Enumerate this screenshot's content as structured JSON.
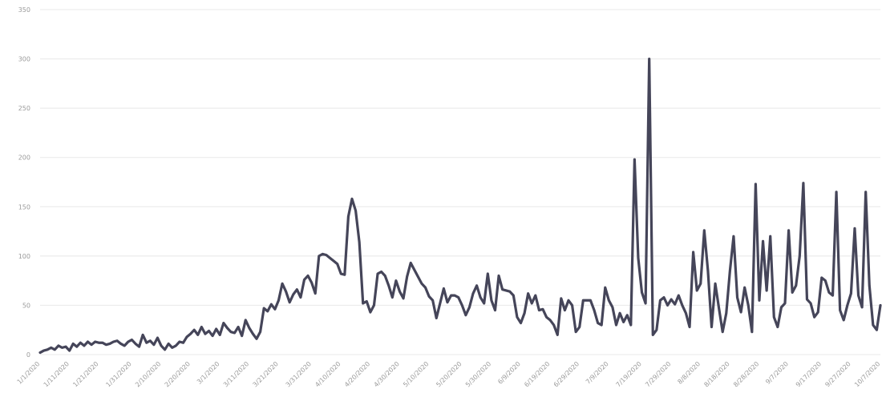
{
  "chart_data": {
    "type": "line",
    "title": "",
    "xlabel": "",
    "ylabel": "",
    "ylim": [
      0,
      350
    ],
    "y_ticks": [
      "0",
      "50",
      "100",
      "150",
      "200",
      "250",
      "300",
      "350"
    ],
    "x_ticks": [
      "1/1/2020",
      "1/11/2020",
      "1/21/2020",
      "1/31/2020",
      "2/10/2020",
      "2/20/2020",
      "3/1/2020",
      "3/11/2020",
      "3/21/2020",
      "3/31/2020",
      "4/10/2020",
      "4/20/2020",
      "4/30/2020",
      "5/10/2020",
      "5/20/2020",
      "5/30/2020",
      "6/9/2020",
      "6/19/2020",
      "6/29/2020",
      "7/9/2020",
      "7/19/2020",
      "7/29/2020",
      "8/8/2020",
      "8/18/2020",
      "8/28/2020",
      "9/7/2020",
      "9/17/2020",
      "9/27/2020",
      "10/7/2020"
    ],
    "grid": true,
    "legend": "none",
    "series": [
      {
        "color": "#454559",
        "values": [
          2,
          4,
          5,
          7,
          5,
          9,
          7,
          8,
          4,
          11,
          8,
          12,
          9,
          13,
          10,
          13,
          12,
          12,
          10,
          11,
          13,
          14,
          11,
          9,
          13,
          15,
          11,
          8,
          20,
          12,
          14,
          10,
          17,
          9,
          5,
          11,
          7,
          9,
          13,
          12,
          18,
          21,
          25,
          20,
          28,
          21,
          24,
          19,
          26,
          20,
          32,
          27,
          23,
          22,
          28,
          19,
          35,
          27,
          21,
          16,
          23,
          47,
          44,
          51,
          46,
          55,
          72,
          64,
          53,
          61,
          66,
          58,
          76,
          80,
          73,
          62,
          100,
          102,
          101,
          98,
          95,
          92,
          82,
          81,
          140,
          158,
          146,
          114,
          52,
          54,
          43,
          50,
          82,
          84,
          80,
          70,
          58,
          75,
          64,
          57,
          79,
          93,
          86,
          79,
          72,
          68,
          59,
          55,
          37,
          52,
          67,
          53,
          60,
          60,
          58,
          50,
          40,
          48,
          62,
          70,
          58,
          52,
          82,
          55,
          45,
          80,
          66,
          65,
          64,
          60,
          38,
          32,
          42,
          62,
          52,
          60,
          45,
          46,
          38,
          35,
          30,
          20,
          57,
          45,
          55,
          50,
          23,
          28,
          55,
          55,
          55,
          45,
          32,
          30,
          68,
          55,
          48,
          30,
          42,
          33,
          40,
          30,
          198,
          98,
          63,
          52,
          300,
          20,
          25,
          55,
          58,
          50,
          56,
          51,
          60,
          50,
          42,
          28,
          104,
          65,
          72,
          126,
          85,
          28,
          72,
          47,
          23,
          42,
          85,
          120,
          58,
          43,
          68,
          50,
          23,
          173,
          55,
          115,
          65,
          120,
          38,
          28,
          48,
          52,
          126,
          63,
          70,
          100,
          174,
          56,
          52,
          38,
          43,
          78,
          75,
          63,
          60,
          165,
          45,
          35,
          50,
          62,
          128,
          60,
          48,
          165,
          70,
          30,
          25,
          50
        ]
      }
    ]
  }
}
